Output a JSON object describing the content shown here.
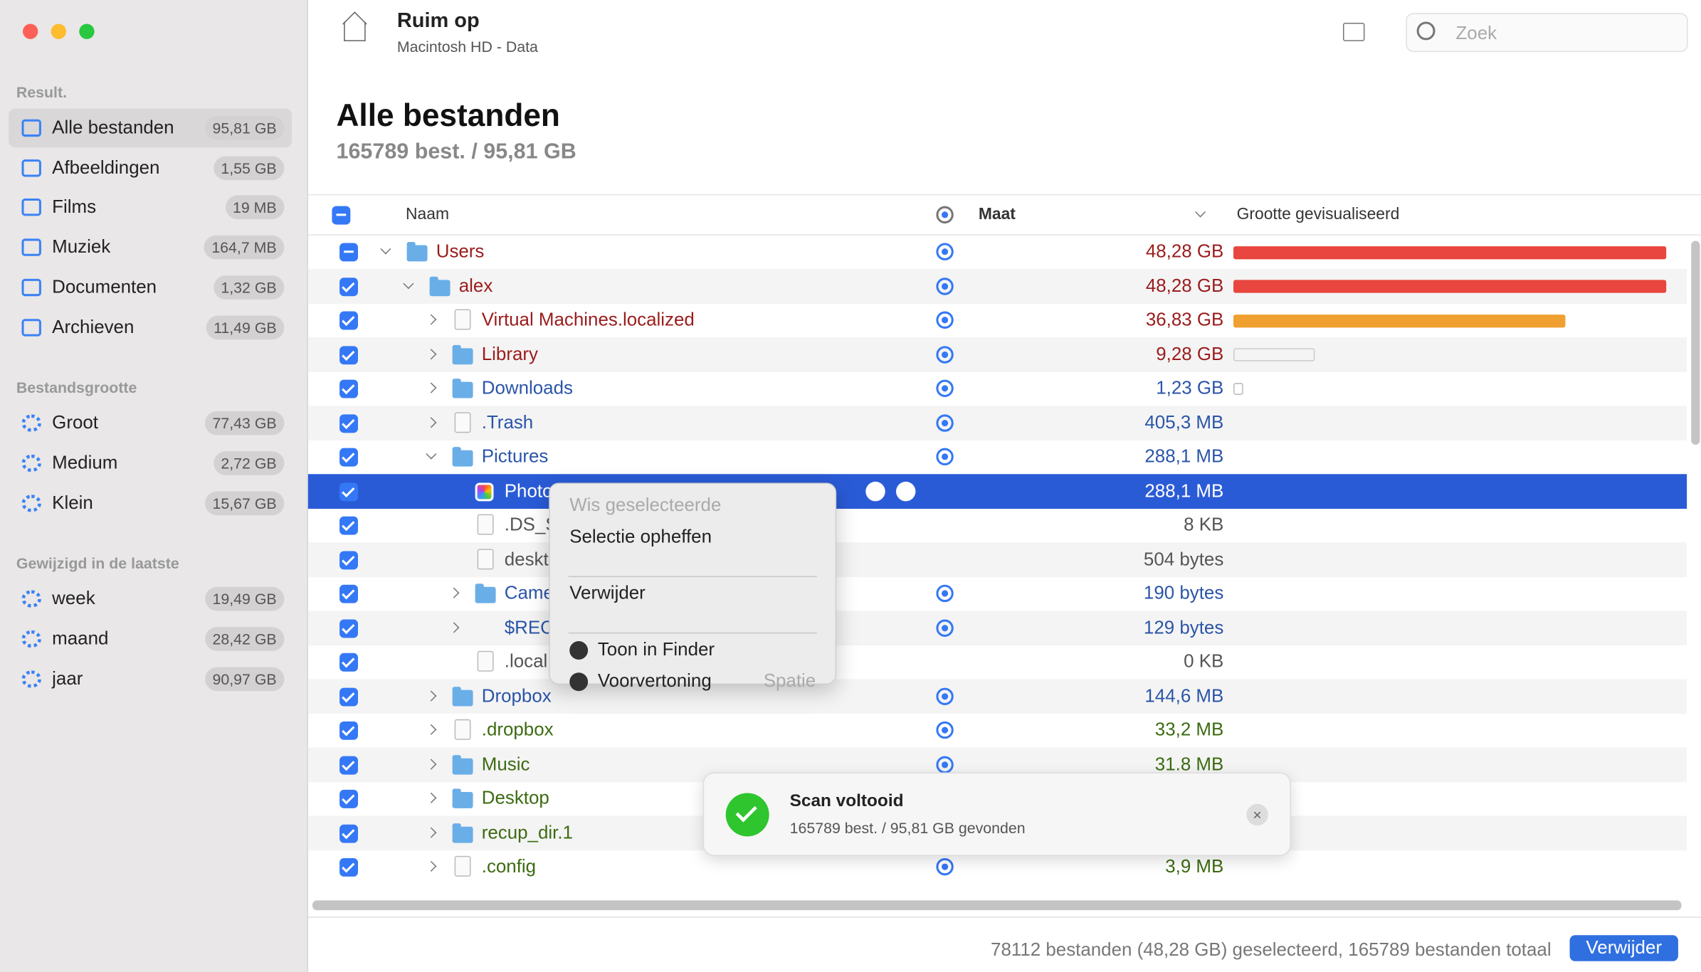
{
  "window": {
    "title": "Ruim op",
    "subtitle": "Macintosh HD - Data",
    "search_placeholder": "Zoek"
  },
  "sidebar": {
    "sections": [
      {
        "title": "Result.",
        "items": [
          {
            "label": "Alle bestanden",
            "size": "95,81 GB",
            "icon": "all",
            "active": true
          },
          {
            "label": "Afbeeldingen",
            "size": "1,55 GB",
            "icon": "image"
          },
          {
            "label": "Films",
            "size": "19 MB",
            "icon": "film"
          },
          {
            "label": "Muziek",
            "size": "164,7 MB",
            "icon": "music"
          },
          {
            "label": "Documenten",
            "size": "1,32 GB",
            "icon": "doc"
          },
          {
            "label": "Archieven",
            "size": "11,49 GB",
            "icon": "archive"
          }
        ]
      },
      {
        "title": "Bestandsgrootte",
        "items": [
          {
            "label": "Groot",
            "size": "77,43 GB",
            "icon": "gear"
          },
          {
            "label": "Medium",
            "size": "2,72 GB",
            "icon": "gear"
          },
          {
            "label": "Klein",
            "size": "15,67 GB",
            "icon": "gear"
          }
        ]
      },
      {
        "title": "Gewijzigd in de laatste",
        "items": [
          {
            "label": "week",
            "size": "19,49 GB",
            "icon": "gear"
          },
          {
            "label": "maand",
            "size": "28,42 GB",
            "icon": "gear"
          },
          {
            "label": "jaar",
            "size": "90,97 GB",
            "icon": "gear"
          }
        ]
      }
    ]
  },
  "main": {
    "title": "Alle bestanden",
    "summary": "165789 best. / 95,81 GB"
  },
  "table": {
    "columns": [
      "Naam",
      "Maat",
      "Grootte gevisualiseerd"
    ],
    "rows": [
      {
        "name": "Users",
        "size": "48,28 GB",
        "level": 0,
        "expanded": true,
        "icon": "folder",
        "color": "#9b1c1c",
        "target": true,
        "checked": "mixed"
      },
      {
        "name": "alex",
        "size": "48,28 GB",
        "level": 1,
        "expanded": true,
        "icon": "folder",
        "color": "#9b1c1c",
        "target": true,
        "checked": true
      },
      {
        "name": "Virtual Machines.localized",
        "size": "36,83 GB",
        "level": 2,
        "expanded": false,
        "icon": "file",
        "color": "#9b1c1c",
        "target": true,
        "checked": true
      },
      {
        "name": "Library",
        "size": "9,28 GB",
        "level": 2,
        "expanded": false,
        "icon": "folder",
        "color": "#9b1c1c",
        "target": true,
        "checked": true
      },
      {
        "name": "Downloads",
        "size": "1,23 GB",
        "level": 2,
        "expanded": false,
        "icon": "folder",
        "color": "#2b55a8",
        "target": true,
        "checked": true
      },
      {
        "name": ".Trash",
        "size": "405,3 MB",
        "level": 2,
        "expanded": false,
        "icon": "file",
        "color": "#2b55a8",
        "target": true,
        "checked": true
      },
      {
        "name": "Pictures",
        "size": "288,1 MB",
        "level": 2,
        "expanded": true,
        "icon": "folder",
        "color": "#2b55a8",
        "target": true,
        "checked": true
      },
      {
        "name": "Photo",
        "size": "288,1 MB",
        "level": 3,
        "expanded": null,
        "icon": "photos",
        "color": "#ffffff",
        "target": false,
        "checked": true,
        "selected": true
      },
      {
        "name": ".DS_S",
        "size": "8 KB",
        "level": 3,
        "expanded": null,
        "icon": "file",
        "color": "#555555",
        "target": false,
        "checked": true
      },
      {
        "name": "deskt",
        "size": "504 bytes",
        "level": 3,
        "expanded": null,
        "icon": "file",
        "color": "#555555",
        "target": false,
        "checked": true
      },
      {
        "name": "Came",
        "size": "190 bytes",
        "level": 3,
        "expanded": false,
        "icon": "folder",
        "color": "#2b55a8",
        "target": true,
        "checked": true
      },
      {
        "name": "$REC",
        "size": "129 bytes",
        "level": 3,
        "expanded": false,
        "icon": null,
        "color": "#2b55a8",
        "target": true,
        "checked": true
      },
      {
        "name": ".local",
        "size": "0 KB",
        "level": 3,
        "expanded": null,
        "icon": "file",
        "color": "#555555",
        "target": false,
        "checked": true
      },
      {
        "name": "Dropbox",
        "size": "144,6 MB",
        "level": 2,
        "expanded": false,
        "icon": "folder",
        "color": "#2b55a8",
        "target": true,
        "checked": true
      },
      {
        "name": ".dropbox",
        "size": "33,2 MB",
        "level": 2,
        "expanded": false,
        "icon": "file",
        "color": "#3d6b12",
        "target": true,
        "checked": true
      },
      {
        "name": "Music",
        "size": "31.8 MB",
        "level": 2,
        "expanded": false,
        "icon": "folder",
        "color": "#3d6b12",
        "target": true,
        "checked": true
      },
      {
        "name": "Desktop",
        "size": null,
        "level": 2,
        "expanded": false,
        "icon": "folder",
        "color": "#3d6b12",
        "target": false,
        "checked": true
      },
      {
        "name": "recup_dir.1",
        "size": null,
        "level": 2,
        "expanded": false,
        "icon": "folder",
        "color": "#3d6b12",
        "target": false,
        "checked": true
      },
      {
        "name": ".config",
        "size": "3,9 MB",
        "level": 2,
        "expanded": false,
        "icon": "file",
        "color": "#3d6b12",
        "target": true,
        "checked": true
      }
    ]
  },
  "context_menu": {
    "items": [
      {
        "label": "Wis geselecteerde",
        "disabled": true
      },
      {
        "label": "Selectie opheffen"
      },
      {
        "label": "Verwijder",
        "separator_before": true
      },
      {
        "label": "Toon in Finder",
        "icon": "search",
        "separator_before": true
      },
      {
        "label": "Voorvertoning",
        "icon": "eye",
        "shortcut": "Spatie"
      }
    ]
  },
  "toast": {
    "title": "Scan voltooid",
    "message": "165789 best. / 95,81 GB gevonden"
  },
  "footer": {
    "status": "78112 bestanden (48,28 GB) geselecteerd, 165789 bestanden totaal",
    "button": "Verwijder"
  }
}
